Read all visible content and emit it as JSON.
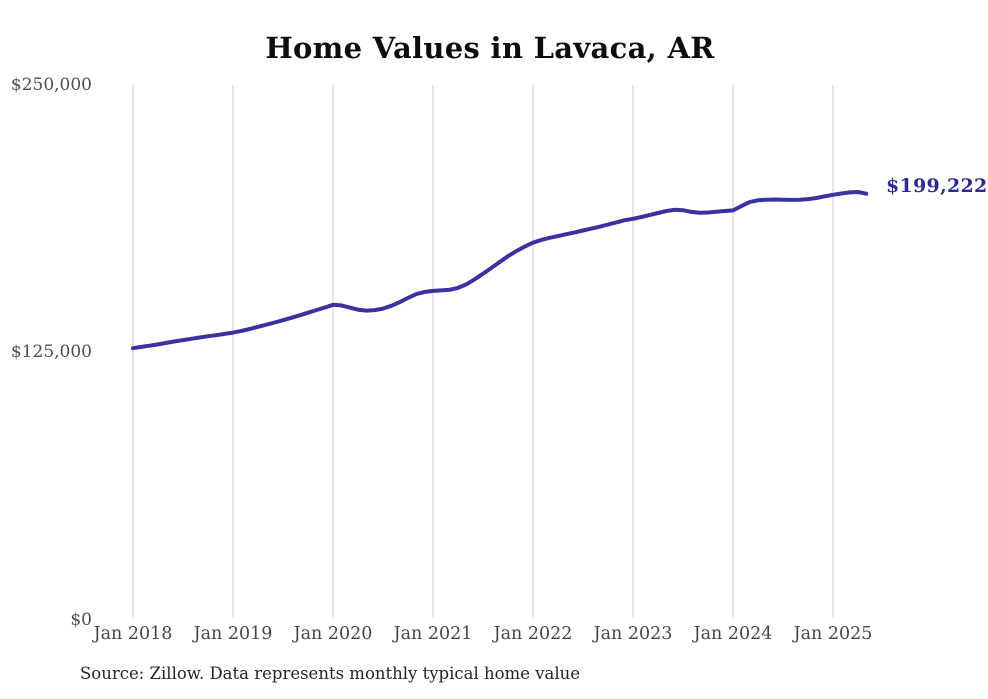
{
  "chart": {
    "title": "Home Values in Lavaca, AR",
    "source_note": "Source: Zillow. Data represents monthly typical home value",
    "end_label": "$199,222",
    "colors": {
      "line": "#3932a0",
      "end_label_text": "#2e2b90",
      "gridline": "#cbcbcb",
      "tick_text": "#4f4f4f",
      "title_text": "#0d0d0d",
      "source_text": "#262626",
      "background": "#ffffff"
    }
  },
  "chart_data": {
    "type": "line",
    "title": "Home Values in Lavaca, AR",
    "unit": "USD",
    "series_name": "Typical home value (monthly)",
    "x": [
      "2018-01",
      "2018-02",
      "2018-03",
      "2018-04",
      "2018-05",
      "2018-06",
      "2018-07",
      "2018-08",
      "2018-09",
      "2018-10",
      "2018-11",
      "2018-12",
      "2019-01",
      "2019-02",
      "2019-03",
      "2019-04",
      "2019-05",
      "2019-06",
      "2019-07",
      "2019-08",
      "2019-09",
      "2019-10",
      "2019-11",
      "2019-12",
      "2020-01",
      "2020-02",
      "2020-03",
      "2020-04",
      "2020-05",
      "2020-06",
      "2020-07",
      "2020-08",
      "2020-09",
      "2020-10",
      "2020-11",
      "2020-12",
      "2021-01",
      "2021-02",
      "2021-03",
      "2021-04",
      "2021-05",
      "2021-06",
      "2021-07",
      "2021-08",
      "2021-09",
      "2021-10",
      "2021-11",
      "2021-12",
      "2022-01",
      "2022-02",
      "2022-03",
      "2022-04",
      "2022-05",
      "2022-06",
      "2022-07",
      "2022-08",
      "2022-09",
      "2022-10",
      "2022-11",
      "2022-12",
      "2023-01",
      "2023-02",
      "2023-03",
      "2023-04",
      "2023-05",
      "2023-06",
      "2023-07",
      "2023-08",
      "2023-09",
      "2023-10",
      "2023-11",
      "2023-12",
      "2024-01",
      "2024-02",
      "2024-03",
      "2024-04",
      "2024-05",
      "2024-06",
      "2024-07",
      "2024-08",
      "2024-09",
      "2024-10",
      "2024-11",
      "2024-12",
      "2025-01",
      "2025-02",
      "2025-03",
      "2025-04",
      "2025-05"
    ],
    "values": [
      127000,
      127600,
      128200,
      128800,
      129500,
      130200,
      130800,
      131400,
      132000,
      132600,
      133100,
      133700,
      134300,
      135100,
      136000,
      137000,
      138000,
      139000,
      140100,
      141200,
      142400,
      143600,
      144800,
      146000,
      147300,
      147000,
      146000,
      145000,
      144600,
      144800,
      145500,
      146800,
      148500,
      150500,
      152300,
      153300,
      153800,
      154000,
      154300,
      155200,
      156800,
      159200,
      161800,
      164500,
      167300,
      170000,
      172400,
      174500,
      176300,
      177600,
      178600,
      179400,
      180300,
      181100,
      182000,
      182900,
      183800,
      184800,
      185800,
      186800,
      187500,
      188300,
      189200,
      190200,
      191100,
      191700,
      191500,
      190700,
      190300,
      190400,
      190800,
      191100,
      191400,
      193400,
      195300,
      196100,
      196400,
      196500,
      196400,
      196300,
      196400,
      196700,
      197200,
      198000,
      198700,
      199300,
      199800,
      200000,
      199222
    ],
    "x_tick_labels": [
      "Jan 2018",
      "Jan 2019",
      "Jan 2020",
      "Jan 2021",
      "Jan 2022",
      "Jan 2023",
      "Jan 2024",
      "Jan 2025"
    ],
    "y_tick_labels": [
      "$0",
      "$125,000",
      "$250,000"
    ],
    "y_tick_values": [
      0,
      125000,
      250000
    ],
    "ylim": [
      0,
      250000
    ],
    "grid": "vertical-year-lines-only",
    "legend": "none",
    "end_annotation": "$199,222",
    "final_value": 199222,
    "source": "Source: Zillow. Data represents monthly typical home value"
  }
}
